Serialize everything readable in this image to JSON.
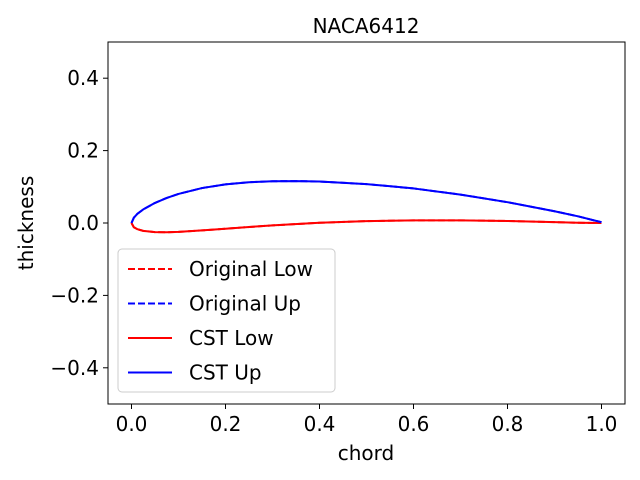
{
  "chart_data": {
    "type": "line",
    "title": "NACA6412",
    "xlabel": "chord",
    "ylabel": "thickness",
    "xlim": [
      -0.05,
      1.05
    ],
    "ylim": [
      -0.5,
      0.5
    ],
    "xticks": [
      0.0,
      0.2,
      0.4,
      0.6,
      0.8,
      1.0
    ],
    "xtick_labels": [
      "0.0",
      "0.2",
      "0.4",
      "0.6",
      "0.8",
      "1.0"
    ],
    "yticks": [
      -0.4,
      -0.2,
      0.0,
      0.2,
      0.4
    ],
    "ytick_labels": [
      "−0.4",
      "−0.2",
      "0.0",
      "0.2",
      "0.4"
    ],
    "grid": false,
    "legend_position": "lower-left",
    "series": [
      {
        "name": "Original Low",
        "color": "#ff0000",
        "dash": "dashed",
        "x": [
          0,
          0.005,
          0.0125,
          0.025,
          0.05,
          0.075,
          0.1,
          0.15,
          0.2,
          0.25,
          0.3,
          0.4,
          0.5,
          0.6,
          0.7,
          0.8,
          0.9,
          0.95,
          1.0
        ],
        "y": [
          0,
          -0.0118,
          -0.0171,
          -0.0217,
          -0.0252,
          -0.0256,
          -0.0246,
          -0.0205,
          -0.0158,
          -0.0111,
          -0.0066,
          0.0007,
          0.0052,
          0.0072,
          0.0073,
          0.0056,
          0.0024,
          0.0006,
          0.0
        ]
      },
      {
        "name": "Original Up",
        "color": "#0000ff",
        "dash": "dashed",
        "x": [
          0,
          0.005,
          0.0125,
          0.025,
          0.05,
          0.075,
          0.1,
          0.15,
          0.2,
          0.25,
          0.3,
          0.35,
          0.4,
          0.5,
          0.6,
          0.7,
          0.8,
          0.9,
          0.95,
          1.0
        ],
        "y": [
          0,
          0.0147,
          0.0255,
          0.0375,
          0.0555,
          0.0693,
          0.0803,
          0.0965,
          0.1068,
          0.1127,
          0.1154,
          0.1158,
          0.1145,
          0.1075,
          0.0955,
          0.0785,
          0.0575,
          0.0325,
          0.0185,
          0.002
        ]
      },
      {
        "name": "CST Low",
        "color": "#ff0000",
        "dash": "solid",
        "x": [
          0,
          0.005,
          0.0125,
          0.025,
          0.05,
          0.075,
          0.1,
          0.15,
          0.2,
          0.25,
          0.3,
          0.4,
          0.5,
          0.6,
          0.7,
          0.8,
          0.9,
          0.95,
          1.0
        ],
        "y": [
          0,
          -0.0118,
          -0.0171,
          -0.0217,
          -0.0252,
          -0.0256,
          -0.0246,
          -0.0205,
          -0.0158,
          -0.0111,
          -0.0066,
          0.0007,
          0.0052,
          0.0072,
          0.0073,
          0.0056,
          0.0024,
          0.0006,
          0.0
        ]
      },
      {
        "name": "CST Up",
        "color": "#0000ff",
        "dash": "solid",
        "x": [
          0,
          0.005,
          0.0125,
          0.025,
          0.05,
          0.075,
          0.1,
          0.15,
          0.2,
          0.25,
          0.3,
          0.35,
          0.4,
          0.5,
          0.6,
          0.7,
          0.8,
          0.9,
          0.95,
          1.0
        ],
        "y": [
          0,
          0.0147,
          0.0255,
          0.0375,
          0.0555,
          0.0693,
          0.0803,
          0.0965,
          0.1068,
          0.1127,
          0.1154,
          0.1158,
          0.1145,
          0.1075,
          0.0955,
          0.0785,
          0.0575,
          0.0325,
          0.0185,
          0.002
        ]
      }
    ]
  }
}
